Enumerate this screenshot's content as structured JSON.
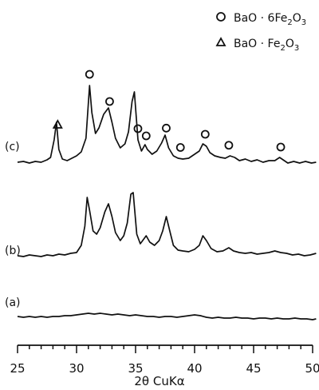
{
  "chart_data": {
    "type": "line",
    "xlabel": "2θ CuKα",
    "xlim": [
      25,
      50
    ],
    "xticks": [
      "25",
      "30",
      "35",
      "40",
      "45",
      "50"
    ],
    "grid": false,
    "legend": {
      "placement": "top-right",
      "entries": [
        {
          "marker": "circle",
          "label": "BaO · 6Fe2O3",
          "parts": [
            "BaO · 6Fe",
            "2",
            "O",
            "3"
          ]
        },
        {
          "marker": "triangle",
          "label": "BaO · Fe2O3",
          "parts": [
            "BaO · Fe",
            "2",
            "O",
            "3"
          ]
        }
      ]
    },
    "series": [
      {
        "name": "(c)",
        "points": [
          [
            25.0,
            32
          ],
          [
            25.5,
            33
          ],
          [
            26.0,
            31
          ],
          [
            26.5,
            33
          ],
          [
            27.0,
            32
          ],
          [
            27.5,
            35
          ],
          [
            27.8,
            38
          ],
          [
            28.1,
            60
          ],
          [
            28.3,
            82
          ],
          [
            28.5,
            48
          ],
          [
            28.8,
            36
          ],
          [
            29.2,
            34
          ],
          [
            29.6,
            37
          ],
          [
            30.0,
            40
          ],
          [
            30.4,
            45
          ],
          [
            30.8,
            62
          ],
          [
            31.1,
            128
          ],
          [
            31.3,
            94
          ],
          [
            31.6,
            68
          ],
          [
            31.9,
            75
          ],
          [
            32.3,
            92
          ],
          [
            32.7,
            100
          ],
          [
            33.0,
            82
          ],
          [
            33.3,
            62
          ],
          [
            33.7,
            50
          ],
          [
            34.1,
            55
          ],
          [
            34.4,
            70
          ],
          [
            34.7,
            108
          ],
          [
            34.9,
            120
          ],
          [
            35.2,
            60
          ],
          [
            35.5,
            46
          ],
          [
            35.8,
            54
          ],
          [
            36.0,
            48
          ],
          [
            36.4,
            42
          ],
          [
            36.8,
            46
          ],
          [
            37.2,
            56
          ],
          [
            37.5,
            66
          ],
          [
            37.8,
            50
          ],
          [
            38.2,
            40
          ],
          [
            38.6,
            37
          ],
          [
            39.0,
            36
          ],
          [
            39.5,
            37
          ],
          [
            40.0,
            42
          ],
          [
            40.4,
            46
          ],
          [
            40.7,
            55
          ],
          [
            41.0,
            52
          ],
          [
            41.3,
            44
          ],
          [
            41.7,
            40
          ],
          [
            42.2,
            38
          ],
          [
            42.6,
            37
          ],
          [
            43.0,
            40
          ],
          [
            43.4,
            38
          ],
          [
            43.8,
            34
          ],
          [
            44.3,
            36
          ],
          [
            44.8,
            33
          ],
          [
            45.3,
            35
          ],
          [
            45.8,
            32
          ],
          [
            46.3,
            34
          ],
          [
            46.8,
            34
          ],
          [
            47.2,
            38
          ],
          [
            47.5,
            35
          ],
          [
            47.9,
            31
          ],
          [
            48.4,
            33
          ],
          [
            48.9,
            31
          ],
          [
            49.4,
            33
          ],
          [
            49.9,
            31
          ],
          [
            50.3,
            32
          ]
        ]
      },
      {
        "name": "(b)",
        "points": [
          [
            25.0,
            25
          ],
          [
            25.5,
            24
          ],
          [
            26.0,
            26
          ],
          [
            26.5,
            25
          ],
          [
            27.0,
            24
          ],
          [
            27.5,
            26
          ],
          [
            28.0,
            25
          ],
          [
            28.5,
            27
          ],
          [
            29.0,
            26
          ],
          [
            29.5,
            28
          ],
          [
            30.0,
            29
          ],
          [
            30.4,
            38
          ],
          [
            30.7,
            62
          ],
          [
            30.9,
            98
          ],
          [
            31.1,
            82
          ],
          [
            31.4,
            56
          ],
          [
            31.7,
            52
          ],
          [
            32.0,
            60
          ],
          [
            32.4,
            80
          ],
          [
            32.7,
            90
          ],
          [
            33.0,
            74
          ],
          [
            33.3,
            54
          ],
          [
            33.7,
            44
          ],
          [
            34.0,
            50
          ],
          [
            34.3,
            66
          ],
          [
            34.6,
            102
          ],
          [
            34.8,
            104
          ],
          [
            35.1,
            52
          ],
          [
            35.4,
            40
          ],
          [
            35.6,
            44
          ],
          [
            35.9,
            50
          ],
          [
            36.2,
            42
          ],
          [
            36.6,
            38
          ],
          [
            37.0,
            44
          ],
          [
            37.3,
            56
          ],
          [
            37.6,
            74
          ],
          [
            37.9,
            56
          ],
          [
            38.2,
            38
          ],
          [
            38.6,
            32
          ],
          [
            39.0,
            31
          ],
          [
            39.5,
            30
          ],
          [
            40.0,
            33
          ],
          [
            40.4,
            38
          ],
          [
            40.7,
            50
          ],
          [
            41.0,
            44
          ],
          [
            41.4,
            34
          ],
          [
            41.9,
            30
          ],
          [
            42.4,
            31
          ],
          [
            42.9,
            35
          ],
          [
            43.3,
            31
          ],
          [
            43.8,
            29
          ],
          [
            44.3,
            28
          ],
          [
            44.8,
            29
          ],
          [
            45.3,
            27
          ],
          [
            45.8,
            28
          ],
          [
            46.3,
            29
          ],
          [
            46.8,
            31
          ],
          [
            47.3,
            29
          ],
          [
            47.8,
            28
          ],
          [
            48.3,
            26
          ],
          [
            48.8,
            27
          ],
          [
            49.3,
            25
          ],
          [
            49.8,
            26
          ],
          [
            50.3,
            28
          ]
        ]
      },
      {
        "name": "(a)",
        "points": [
          [
            25.0,
            9
          ],
          [
            25.5,
            8
          ],
          [
            26.0,
            9
          ],
          [
            26.5,
            8
          ],
          [
            27.0,
            9
          ],
          [
            27.5,
            8
          ],
          [
            28.0,
            9
          ],
          [
            28.5,
            9
          ],
          [
            29.0,
            10
          ],
          [
            29.5,
            10
          ],
          [
            30.0,
            11
          ],
          [
            30.5,
            12
          ],
          [
            31.0,
            13
          ],
          [
            31.5,
            12
          ],
          [
            32.0,
            13
          ],
          [
            32.5,
            12
          ],
          [
            33.0,
            11
          ],
          [
            33.5,
            12
          ],
          [
            34.0,
            11
          ],
          [
            34.5,
            10
          ],
          [
            35.0,
            11
          ],
          [
            35.5,
            10
          ],
          [
            36.0,
            9
          ],
          [
            36.5,
            9
          ],
          [
            37.0,
            8
          ],
          [
            37.5,
            9
          ],
          [
            38.0,
            9
          ],
          [
            38.5,
            8
          ],
          [
            39.0,
            9
          ],
          [
            39.5,
            10
          ],
          [
            40.0,
            11
          ],
          [
            40.5,
            10
          ],
          [
            41.0,
            8
          ],
          [
            41.5,
            7
          ],
          [
            42.0,
            8
          ],
          [
            42.5,
            7
          ],
          [
            43.0,
            7
          ],
          [
            43.5,
            8
          ],
          [
            44.0,
            7
          ],
          [
            44.5,
            7
          ],
          [
            45.0,
            6
          ],
          [
            45.5,
            7
          ],
          [
            46.0,
            7
          ],
          [
            46.5,
            6
          ],
          [
            47.0,
            7
          ],
          [
            47.5,
            6
          ],
          [
            48.0,
            6
          ],
          [
            48.5,
            7
          ],
          [
            49.0,
            6
          ],
          [
            49.5,
            6
          ],
          [
            50.0,
            5
          ],
          [
            50.3,
            6
          ]
        ]
      }
    ],
    "markers": [
      {
        "type": "triangle",
        "x": 28.4
      },
      {
        "type": "circle",
        "x": 31.1
      },
      {
        "type": "circle",
        "x": 32.8
      },
      {
        "type": "circle",
        "x": 35.2
      },
      {
        "type": "circle",
        "x": 35.9
      },
      {
        "type": "circle",
        "x": 37.6
      },
      {
        "type": "circle",
        "x": 38.8
      },
      {
        "type": "circle",
        "x": 40.9
      },
      {
        "type": "circle",
        "x": 42.9
      },
      {
        "type": "circle",
        "x": 47.3
      }
    ]
  }
}
